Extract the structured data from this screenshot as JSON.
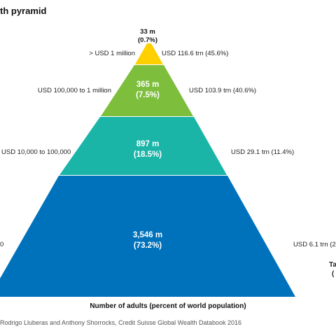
{
  "title": "th pyramid",
  "tiers": [
    {
      "id": "top",
      "adults": "33 m",
      "percent": "(0.7%)",
      "wealth_range": "> USD 1 million",
      "total_wealth": "USD 116.6 trn (45.6%)",
      "color": "#FFD000"
    },
    {
      "id": "upper",
      "adults": "365 m",
      "percent": "(7.5%)",
      "wealth_range": "USD 100,000 to 1 million",
      "total_wealth": "USD 103.9 trn (40.6%)",
      "color": "#7DBE3C"
    },
    {
      "id": "middle",
      "adults": "897 m",
      "percent": "(18.5%)",
      "wealth_range": "USD 10,000 to 100,000",
      "total_wealth": "USD 29.1 trn (11.4%)",
      "color": "#1BB5A8"
    },
    {
      "id": "base",
      "adults": "3,546 m",
      "percent": "(73.2%)",
      "wealth_range": "0",
      "total_wealth": "USD 6.1 trn (2",
      "color": "#0072BC"
    }
  ],
  "right_edge_text": {
    "line1": "Ta",
    "line2": "("
  },
  "axis_title": "Number of adults (percent of world population)",
  "source": "Rodrigo Lluberas and Anthony Shorrocks, Credit Suisse Global Wealth Databook 2016"
}
